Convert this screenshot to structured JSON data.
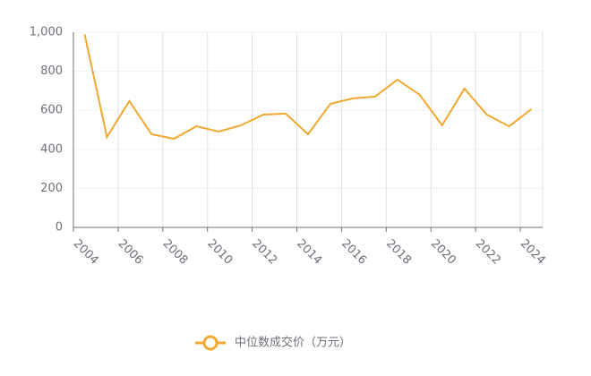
{
  "chart_data": {
    "type": "line",
    "categories": [
      "2004",
      null,
      "2006",
      null,
      "2008",
      null,
      "2010",
      null,
      "2012",
      null,
      "2014",
      null,
      "2016",
      null,
      "2018",
      null,
      "2020",
      null,
      "2022",
      null,
      "2024"
    ],
    "series": [
      {
        "name": "中位数成交价（万元）",
        "color": "#f0a830",
        "values": [
          990,
          463,
          647,
          477,
          454,
          518,
          491,
          523,
          578,
          583,
          477,
          633,
          661,
          670,
          757,
          679,
          523,
          711,
          578,
          518,
          606
        ]
      }
    ],
    "ylim": [
      0,
      1000
    ],
    "yticks": [
      0,
      200,
      400,
      600,
      800,
      {
        "value": 1000,
        "label": "1,000"
      }
    ],
    "grid": true
  }
}
